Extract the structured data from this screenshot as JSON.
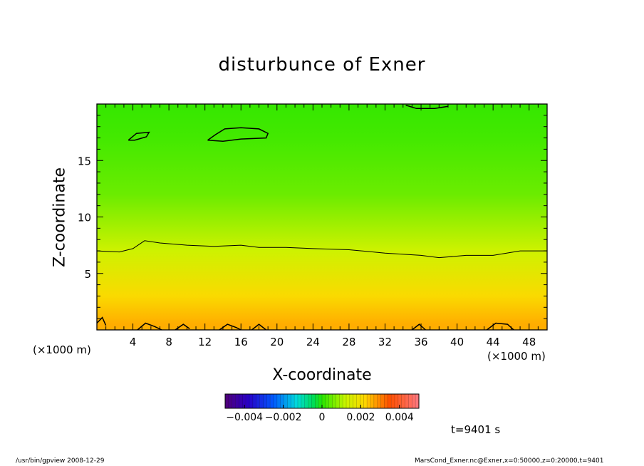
{
  "chart_data": {
    "type": "heatmap",
    "title": "disturbunce of Exner",
    "xlabel": "X-coordinate",
    "ylabel": "Z-coordinate",
    "x_unit_label": "(×1000 m)",
    "xlim": [
      0,
      50
    ],
    "ylim": [
      0,
      20
    ],
    "x_ticks": [
      4,
      8,
      12,
      16,
      20,
      24,
      28,
      32,
      36,
      40,
      44,
      48
    ],
    "y_ticks": [
      5,
      10,
      15
    ],
    "colorbar": {
      "range": [
        -0.005,
        0.005
      ],
      "tick_values": [
        -0.004,
        -0.002,
        0,
        0.002,
        0.004
      ],
      "tick_labels": [
        "−0.004",
        "−0.002",
        "0",
        "0.002",
        "0.004"
      ]
    },
    "field_summary": [
      {
        "z": 0.5,
        "value": 0.0026
      },
      {
        "z": 3,
        "value": 0.0021
      },
      {
        "z": 7,
        "value": 0.0013
      },
      {
        "z": 12,
        "value": 0.0005
      },
      {
        "z": 17,
        "value": 0.0002
      },
      {
        "z": 20,
        "value": 0.0001
      }
    ],
    "contours": [
      {
        "points": [
          [
            0,
            7.0
          ],
          [
            2.5,
            6.9
          ],
          [
            4,
            7.2
          ],
          [
            5.3,
            7.9
          ],
          [
            7,
            7.7
          ],
          [
            10,
            7.5
          ],
          [
            13,
            7.4
          ],
          [
            16,
            7.5
          ],
          [
            18,
            7.3
          ],
          [
            21,
            7.3
          ],
          [
            24,
            7.2
          ],
          [
            28,
            7.1
          ],
          [
            32,
            6.8
          ],
          [
            36,
            6.6
          ],
          [
            38,
            6.4
          ],
          [
            41,
            6.6
          ],
          [
            44,
            6.6
          ],
          [
            47,
            7.0
          ],
          [
            50,
            7.0
          ]
        ]
      },
      {
        "points": [
          [
            3.5,
            16.8
          ],
          [
            4.4,
            17.4
          ],
          [
            5.8,
            17.5
          ],
          [
            5.5,
            17.1
          ],
          [
            4.2,
            16.8
          ],
          [
            3.5,
            16.8
          ]
        ]
      },
      {
        "points": [
          [
            12.3,
            16.8
          ],
          [
            13.2,
            17.3
          ],
          [
            14.2,
            17.8
          ],
          [
            16,
            17.9
          ],
          [
            18,
            17.8
          ],
          [
            19,
            17.4
          ],
          [
            18.8,
            17.0
          ],
          [
            16,
            16.9
          ],
          [
            14,
            16.7
          ],
          [
            12.3,
            16.8
          ]
        ]
      },
      {
        "points": [
          [
            34.3,
            19.9
          ],
          [
            35.5,
            19.6
          ],
          [
            37.5,
            19.6
          ],
          [
            39,
            19.8
          ]
        ]
      },
      {
        "points": [
          [
            0,
            0.6
          ],
          [
            0.6,
            1.1
          ],
          [
            1.0,
            0.4
          ]
        ]
      },
      {
        "points": [
          [
            4.5,
            0
          ],
          [
            5.4,
            0.6
          ],
          [
            6.4,
            0.3
          ],
          [
            7.2,
            0
          ]
        ]
      },
      {
        "points": [
          [
            8.7,
            0
          ],
          [
            9.6,
            0.5
          ],
          [
            10.3,
            0.1
          ]
        ]
      },
      {
        "points": [
          [
            13.6,
            0
          ],
          [
            14.5,
            0.5
          ],
          [
            15.5,
            0.2
          ],
          [
            16.0,
            0
          ]
        ]
      },
      {
        "points": [
          [
            17.2,
            0
          ],
          [
            18.0,
            0.5
          ],
          [
            18.8,
            0
          ]
        ]
      },
      {
        "points": [
          [
            35.0,
            0
          ],
          [
            35.8,
            0.5
          ],
          [
            36.5,
            0
          ]
        ]
      },
      {
        "points": [
          [
            43.3,
            0
          ],
          [
            44.3,
            0.6
          ],
          [
            45.6,
            0.5
          ],
          [
            46.3,
            0
          ]
        ]
      }
    ]
  },
  "time_label": "t=9401 s",
  "footer": {
    "left": "/usr/bin/gpview   2008-12-29",
    "right": "MarsCond_Exner.nc@Exner,x=0:50000,z=0:20000,t=9401"
  }
}
